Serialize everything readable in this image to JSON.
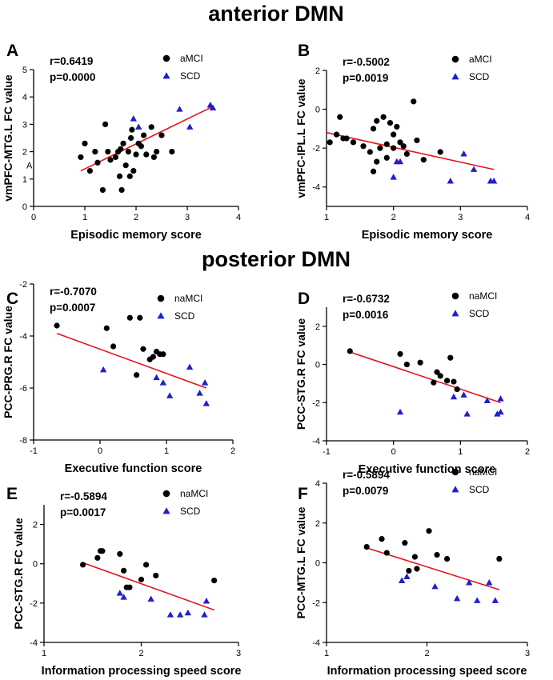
{
  "sections": {
    "anterior": "anterior DMN",
    "posterior": "posterior DMN"
  },
  "colors": {
    "group1": "#000000",
    "group2": "#1f1fcc",
    "fit": "#e8141c"
  },
  "chart_data": [
    {
      "type": "scatter",
      "panel": "A",
      "r_text": "r=0.6419",
      "p_text": "p=0.0000",
      "xlabel": "Episodic memory score",
      "ylabel": "vmPFC-MTG.L FC value",
      "xlim": [
        0,
        4
      ],
      "ylim": [
        0,
        5
      ],
      "xticks": [
        0,
        1,
        2,
        3,
        4
      ],
      "yticks": [
        0,
        1,
        2,
        3,
        4,
        5
      ],
      "yaxis_note": "A",
      "series": [
        {
          "name": "aMCI",
          "marker": "circle",
          "x": [
            0.92,
            1.0,
            1.1,
            1.2,
            1.25,
            1.35,
            1.4,
            1.45,
            1.5,
            1.6,
            1.65,
            1.68,
            1.7,
            1.72,
            1.75,
            1.8,
            1.85,
            1.88,
            1.9,
            1.92,
            1.95,
            2.0,
            2.05,
            2.1,
            2.15,
            2.2,
            2.3,
            2.35,
            2.4,
            2.5,
            2.7
          ],
          "y": [
            1.8,
            2.3,
            1.3,
            2.0,
            1.6,
            0.6,
            3.0,
            2.0,
            1.7,
            1.8,
            2.0,
            1.1,
            2.1,
            0.6,
            2.3,
            1.5,
            2.0,
            1.1,
            2.5,
            2.8,
            1.3,
            1.9,
            2.3,
            2.2,
            2.6,
            1.9,
            2.9,
            1.8,
            2.0,
            2.6,
            2.0
          ]
        },
        {
          "name": "SCD",
          "marker": "triangle",
          "x": [
            1.95,
            2.05,
            2.85,
            3.05,
            3.45,
            3.5
          ],
          "y": [
            3.2,
            2.9,
            3.55,
            2.9,
            3.7,
            3.6
          ]
        }
      ],
      "fit": {
        "x": [
          0.92,
          3.5
        ],
        "y": [
          1.3,
          3.65
        ]
      }
    },
    {
      "type": "scatter",
      "panel": "B",
      "r_text": "r=-0.5002",
      "p_text": "p=0.0019",
      "xlabel": "Episodic memory score",
      "ylabel": "vmPFC-IPL.L FC value",
      "xlim": [
        1,
        4
      ],
      "ylim": [
        -5,
        2
      ],
      "xticks": [
        1,
        2,
        3,
        4
      ],
      "yticks": [
        -4,
        -2,
        0,
        2
      ],
      "series": [
        {
          "name": "aMCI",
          "marker": "circle",
          "x": [
            1.05,
            1.15,
            1.2,
            1.25,
            1.3,
            1.4,
            1.55,
            1.65,
            1.7,
            1.75,
            1.75,
            1.8,
            1.85,
            1.9,
            1.9,
            1.95,
            2.0,
            2.0,
            2.05,
            2.1,
            2.15,
            2.2,
            2.3,
            2.35,
            2.45,
            2.7
          ],
          "y": [
            -1.7,
            -1.3,
            -0.4,
            -1.5,
            -1.5,
            -1.7,
            -1.9,
            -2.2,
            -1.0,
            -0.6,
            -2.7,
            -2.0,
            -0.4,
            -2.5,
            -1.8,
            -0.7,
            -1.3,
            -2.0,
            -0.9,
            -1.7,
            -1.9,
            -2.3,
            0.4,
            -1.6,
            -2.6,
            -2.2
          ],
          "extra": {
            "x": [
              1.7
            ],
            "y": [
              -3.2
            ]
          }
        },
        {
          "name": "SCD",
          "marker": "triangle",
          "x": [
            2.0,
            2.05,
            2.1,
            2.85,
            3.05,
            3.2,
            3.45,
            3.5
          ],
          "y": [
            -3.5,
            -2.7,
            -2.7,
            -3.7,
            -2.3,
            -3.1,
            -3.7,
            -3.7
          ]
        }
      ],
      "fit": {
        "x": [
          1.0,
          3.5
        ],
        "y": [
          -1.2,
          -3.1
        ]
      }
    },
    {
      "type": "scatter",
      "panel": "C",
      "r_text": "r=-0.7070",
      "p_text": "p=0.0007",
      "xlabel": "Executive function score",
      "ylabel": "PCC-PRG.R FC value",
      "xlim": [
        -1,
        2
      ],
      "ylim": [
        -8,
        -2
      ],
      "xticks": [
        -1,
        0,
        1,
        2
      ],
      "yticks": [
        -8,
        -6,
        -4,
        -2
      ],
      "series": [
        {
          "name": "naMCI",
          "marker": "circle",
          "x": [
            -0.65,
            0.1,
            0.2,
            0.45,
            0.55,
            0.6,
            0.65,
            0.75,
            0.8,
            0.85,
            0.9,
            0.95
          ],
          "y": [
            -3.6,
            -3.7,
            -4.4,
            -3.3,
            -5.5,
            -3.3,
            -4.5,
            -4.9,
            -4.8,
            -4.6,
            -4.7,
            -4.7
          ]
        },
        {
          "name": "SCD",
          "marker": "triangle",
          "x": [
            0.05,
            0.85,
            0.95,
            1.05,
            1.35,
            1.5,
            1.58,
            1.6
          ],
          "y": [
            -5.3,
            -5.6,
            -5.8,
            -6.3,
            -5.2,
            -6.2,
            -5.8,
            -6.6
          ]
        }
      ],
      "fit": {
        "x": [
          -0.65,
          1.6
        ],
        "y": [
          -3.9,
          -6.0
        ]
      }
    },
    {
      "type": "scatter",
      "panel": "D",
      "r_text": "r=-0.6732",
      "p_text": "p=0.0016",
      "xlabel": "Executive function score",
      "ylabel": "PCC-STG.R FC value",
      "xlim": [
        -1,
        2
      ],
      "ylim": [
        -4,
        3
      ],
      "xticks": [
        -1,
        0,
        1,
        2
      ],
      "yticks": [
        -4,
        -2,
        0,
        2
      ],
      "series": [
        {
          "name": "naMCI",
          "marker": "circle",
          "x": [
            -0.65,
            0.1,
            0.2,
            0.4,
            0.6,
            0.65,
            0.7,
            0.8,
            0.85,
            0.9,
            0.95
          ],
          "y": [
            0.7,
            0.55,
            0.0,
            0.1,
            -0.95,
            -0.4,
            -0.6,
            -0.85,
            0.35,
            -0.9,
            -1.3
          ]
        },
        {
          "name": "SCD",
          "marker": "triangle",
          "x": [
            0.1,
            0.9,
            1.05,
            1.1,
            1.4,
            1.55,
            1.6,
            1.6
          ],
          "y": [
            -2.5,
            -1.7,
            -1.6,
            -2.6,
            -1.9,
            -2.6,
            -2.5,
            -1.8
          ]
        }
      ],
      "fit": {
        "x": [
          -0.65,
          1.6
        ],
        "y": [
          0.65,
          -2.0
        ]
      }
    },
    {
      "type": "scatter",
      "panel": "E",
      "r_text": "r=-0.5894",
      "p_text": "p=0.0017",
      "xlabel": "Information processing speed score",
      "ylabel": "PCC-STG.R FC value",
      "xlim": [
        1,
        3
      ],
      "ylim": [
        -4,
        3
      ],
      "xticks": [
        1,
        2,
        3
      ],
      "yticks": [
        -4,
        -2,
        0,
        2
      ],
      "series": [
        {
          "name": "naMCI",
          "marker": "circle",
          "x": [
            1.4,
            1.55,
            1.58,
            1.6,
            1.78,
            1.82,
            1.85,
            1.88,
            2.0,
            2.05,
            2.15,
            2.75
          ],
          "y": [
            -0.05,
            0.3,
            0.65,
            0.65,
            0.5,
            -0.35,
            -1.2,
            -1.2,
            -0.8,
            -0.05,
            -0.6,
            -0.85
          ]
        },
        {
          "name": "SCD",
          "marker": "triangle",
          "x": [
            1.78,
            1.82,
            2.1,
            2.3,
            2.4,
            2.48,
            2.65,
            2.67
          ],
          "y": [
            -1.5,
            -1.7,
            -1.8,
            -2.6,
            -2.6,
            -2.5,
            -2.6,
            -1.9
          ]
        }
      ],
      "fit": {
        "x": [
          1.4,
          2.75
        ],
        "y": [
          0.05,
          -2.35
        ]
      }
    },
    {
      "type": "scatter",
      "panel": "F",
      "r_text": "r=-0.5894",
      "p_text": "p=0.0079",
      "xlabel": "Information processing speed score",
      "ylabel": "PCC-MTG.L FC value",
      "xlim": [
        1,
        3
      ],
      "ylim": [
        -4,
        4
      ],
      "xticks": [
        1,
        2,
        3
      ],
      "yticks": [
        -4,
        -2,
        0,
        2,
        4
      ],
      "series": [
        {
          "name": "naMCI",
          "marker": "circle",
          "x": [
            1.4,
            1.55,
            1.6,
            1.78,
            1.82,
            1.88,
            1.9,
            2.02,
            2.1,
            2.2,
            2.72
          ],
          "y": [
            0.8,
            1.2,
            0.5,
            1.0,
            -0.4,
            0.3,
            -0.3,
            1.6,
            0.4,
            0.2,
            0.2
          ]
        },
        {
          "name": "SCD",
          "marker": "triangle",
          "x": [
            1.75,
            1.8,
            2.08,
            2.3,
            2.42,
            2.5,
            2.62,
            2.68
          ],
          "y": [
            -0.9,
            -0.7,
            -1.2,
            -1.8,
            -1.0,
            -1.9,
            -1.0,
            -1.9
          ]
        }
      ],
      "fit": {
        "x": [
          1.4,
          2.72
        ],
        "y": [
          0.75,
          -1.35
        ]
      }
    }
  ]
}
